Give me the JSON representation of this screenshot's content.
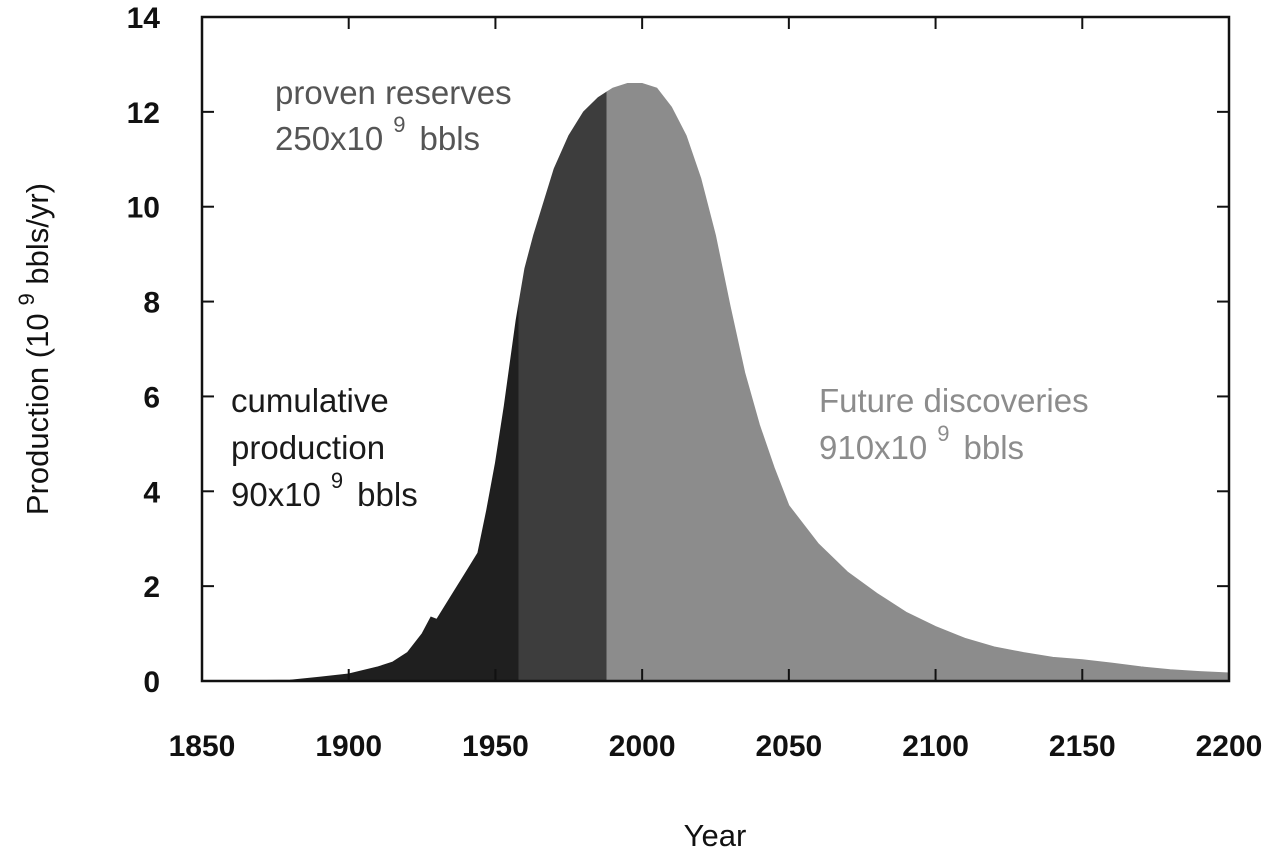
{
  "chart_data": {
    "type": "area",
    "title": "",
    "xlabel": "Year",
    "ylabel_main": "Production (10",
    "ylabel_sup": "9",
    "ylabel_tail": " bbls/yr)",
    "xlim": [
      1850,
      2200
    ],
    "ylim": [
      0,
      14
    ],
    "xticks": [
      1850,
      1900,
      1950,
      2000,
      2050,
      2100,
      2150,
      2200
    ],
    "yticks": [
      0,
      2,
      4,
      6,
      8,
      10,
      12,
      14
    ],
    "x": [
      1850,
      1880,
      1890,
      1900,
      1910,
      1915,
      1920,
      1925,
      1928,
      1930,
      1935,
      1940,
      1944,
      1947,
      1950,
      1953,
      1955,
      1957,
      1960,
      1963,
      1967,
      1970,
      1975,
      1980,
      1985,
      1990,
      1995,
      2000,
      2005,
      2010,
      2015,
      2020,
      2025,
      2030,
      2035,
      2040,
      2045,
      2050,
      2060,
      2070,
      2080,
      2090,
      2100,
      2110,
      2120,
      2130,
      2140,
      2150,
      2160,
      2170,
      2180,
      2190,
      2200
    ],
    "y": [
      0.0,
      0.02,
      0.08,
      0.15,
      0.3,
      0.4,
      0.6,
      1.0,
      1.35,
      1.3,
      1.8,
      2.3,
      2.7,
      3.6,
      4.6,
      5.8,
      6.7,
      7.6,
      8.7,
      9.4,
      10.2,
      10.8,
      11.5,
      12.0,
      12.3,
      12.5,
      12.6,
      12.6,
      12.5,
      12.1,
      11.5,
      10.6,
      9.4,
      7.9,
      6.5,
      5.4,
      4.5,
      3.7,
      2.9,
      2.3,
      1.85,
      1.45,
      1.15,
      0.9,
      0.72,
      0.6,
      0.5,
      0.45,
      0.38,
      0.3,
      0.24,
      0.2,
      0.17
    ],
    "regions": [
      {
        "name": "cumulative production",
        "from": 1850,
        "to": 1958,
        "color": "#1f1f1f"
      },
      {
        "name": "proven reserves",
        "from": 1958,
        "to": 1988,
        "color": "#3d3d3d"
      },
      {
        "name": "future discoveries",
        "from": 1988,
        "to": 2200,
        "color": "#8c8c8c"
      }
    ],
    "annotations": {
      "cumulative": {
        "line1": "cumulative",
        "line2": "production",
        "value": "90x10",
        "sup": "9",
        "unit": "bbls",
        "color": "#1a1a1a"
      },
      "proven": {
        "line1": "proven reserves",
        "value": "250x10",
        "sup": "9",
        "unit": "bbls",
        "color": "#555555"
      },
      "future": {
        "line1": "Future discoveries",
        "value": "910x10",
        "sup": "9",
        "unit": "bbls",
        "color": "#8c8c8c"
      }
    },
    "grid": false,
    "legend": "none"
  }
}
